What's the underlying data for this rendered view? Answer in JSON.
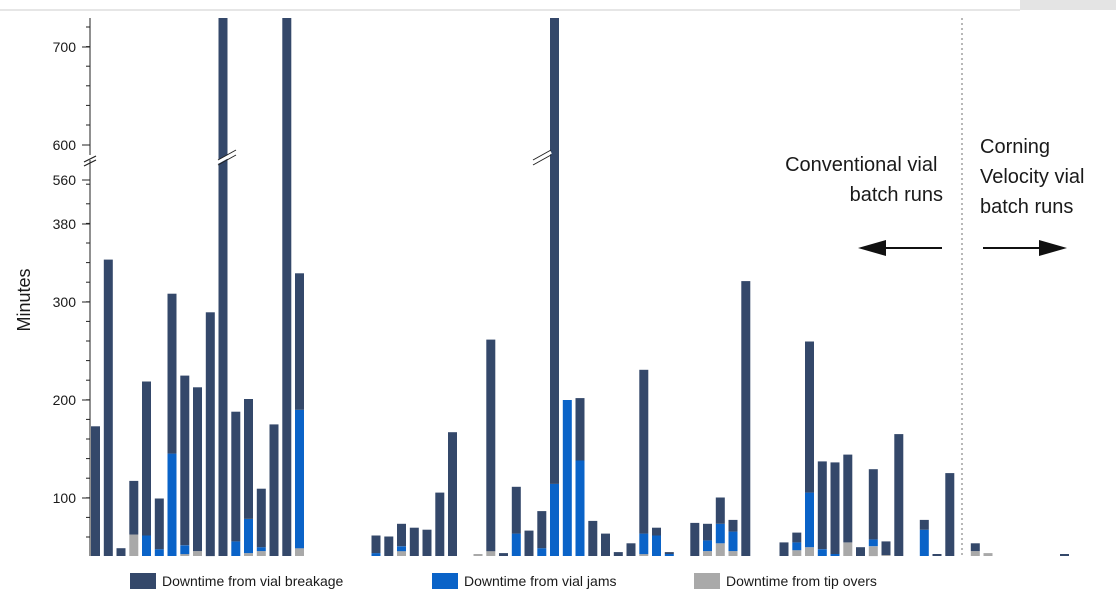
{
  "chart_data": {
    "type": "bar",
    "stacked": true,
    "ylabel": "Minutes",
    "y_ticks": [
      "100",
      "200",
      "300",
      "380",
      "560",
      "600",
      "700"
    ],
    "y_axis_break": "between 560 and 600",
    "annotations": {
      "left": [
        "Conventional vial",
        "batch runs"
      ],
      "right": [
        "Corning",
        "Velocity vial",
        "batch runs"
      ]
    },
    "legend": [
      {
        "label": "Downtime from vial breakage",
        "color": "#34486a"
      },
      {
        "label": "Downtime from vial jams",
        "color": "#0a63c8"
      },
      {
        "label": "Downtime from tip overs",
        "color": "#a9a9a9"
      }
    ],
    "series": [
      {
        "name": "Downtime from vial breakage",
        "color": "#34486a",
        "values": [
          133,
          304,
          8,
          55,
          158,
          52,
          164,
          174,
          168,
          250,
          730,
          133,
          123,
          60,
          135,
          552,
          140,
          0,
          0,
          0,
          0,
          0,
          18,
          20,
          23,
          29,
          27,
          65,
          127,
          0,
          0,
          217,
          3,
          48,
          26,
          38,
          480,
          0,
          64,
          36,
          23,
          4,
          13,
          168,
          8,
          2,
          0,
          34,
          17,
          27,
          12,
          282,
          0,
          0,
          14,
          10,
          155,
          90,
          94,
          90,
          9,
          72,
          14,
          125,
          0,
          10,
          2,
          85,
          0,
          8,
          0,
          0,
          0,
          0,
          0,
          0,
          2
        ]
      },
      {
        "name": "Downtime from vial jams",
        "color": "#0a63c8",
        "values": [
          0,
          0,
          0,
          0,
          21,
          7,
          105,
          9,
          0,
          0,
          0,
          15,
          35,
          4,
          0,
          0,
          142,
          0,
          0,
          0,
          0,
          0,
          3,
          0,
          5,
          0,
          0,
          0,
          0,
          0,
          0,
          0,
          0,
          23,
          0,
          8,
          74,
          160,
          98,
          0,
          0,
          0,
          0,
          21,
          21,
          2,
          0,
          0,
          11,
          20,
          20,
          0,
          0,
          0,
          0,
          8,
          56,
          7,
          2,
          0,
          0,
          7,
          0,
          0,
          0,
          27,
          0,
          0,
          0,
          0,
          0,
          0,
          0,
          0,
          0,
          0,
          0
        ]
      },
      {
        "name": "Downtime from tip overs",
        "color": "#a9a9a9",
        "values": [
          0,
          0,
          0,
          22,
          0,
          0,
          0,
          2,
          5,
          0,
          0,
          0,
          3,
          5,
          0,
          0,
          8,
          0,
          0,
          0,
          0,
          0,
          0,
          0,
          5,
          0,
          0,
          0,
          0,
          0,
          2,
          5,
          0,
          0,
          0,
          0,
          0,
          0,
          0,
          0,
          0,
          0,
          0,
          2,
          0,
          0,
          0,
          0,
          5,
          13,
          5,
          0,
          0,
          0,
          0,
          6,
          9,
          0,
          0,
          14,
          0,
          10,
          1,
          0,
          0,
          0,
          0,
          0,
          0,
          5,
          3,
          0,
          0,
          0,
          0,
          0,
          0
        ]
      }
    ]
  }
}
